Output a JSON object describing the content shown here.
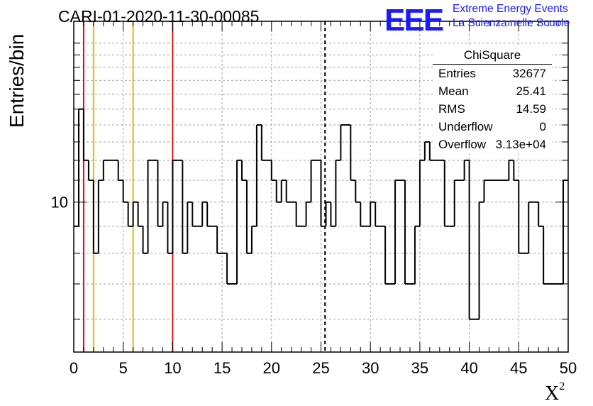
{
  "title": "CARI-01-2020-11-30-00085",
  "logo": {
    "mark": "EEE",
    "line1": "Extreme Energy Events",
    "line2": "La Scienza nelle Scuole",
    "color": "#1a1aff"
  },
  "stats_box": {
    "name": "ChiSquare",
    "rows": [
      {
        "label": "Entries",
        "value": "32677"
      },
      {
        "label": "Mean",
        "value": "25.41"
      },
      {
        "label": "RMS",
        "value": "14.59"
      },
      {
        "label": "Underflow",
        "value": "0"
      },
      {
        "label": "Overflow",
        "value": "3.13e+04"
      }
    ]
  },
  "chart_data": {
    "type": "histogram",
    "title": "CARI-01-2020-11-30-00085",
    "xlabel": "X",
    "xlabel_superscript": "2",
    "ylabel": "Entries/bin",
    "xlim": [
      0,
      50
    ],
    "ylim_log": [
      5.2,
      22
    ],
    "yscale": "log",
    "xticks": [
      0,
      5,
      10,
      15,
      20,
      25,
      30,
      35,
      40,
      45,
      50
    ],
    "ytick_labels": [
      {
        "value": 10,
        "label": "10"
      }
    ],
    "grid": true,
    "bin_width": 0.5,
    "counts": [
      9,
      15,
      12,
      11,
      8,
      11,
      12,
      12,
      12,
      11,
      10,
      9,
      10,
      9,
      8,
      12,
      12,
      9,
      10,
      8,
      12,
      12,
      8,
      10,
      9,
      9,
      10,
      9,
      9,
      8,
      8,
      7,
      7,
      12,
      11,
      8,
      9,
      14,
      12,
      12,
      11,
      10,
      11,
      10,
      10,
      9,
      9,
      10,
      12,
      12,
      9,
      10,
      9,
      12,
      14,
      14,
      11,
      10,
      9,
      9,
      10,
      9,
      9,
      7,
      7,
      11,
      11,
      7,
      7,
      9,
      12,
      13,
      12,
      12,
      12,
      9,
      9,
      11,
      11,
      12,
      6,
      6,
      10,
      11,
      11,
      11,
      11,
      11,
      12,
      11,
      8,
      8,
      10,
      10,
      9,
      7,
      7,
      7,
      7,
      11
    ],
    "vertical_lines": [
      {
        "x": 1,
        "color": "#dd1111",
        "style": "solid"
      },
      {
        "x": 2,
        "color": "#f0b400",
        "style": "solid"
      },
      {
        "x": 6,
        "color": "#f0b400",
        "style": "solid"
      },
      {
        "x": 10,
        "color": "#dd1111",
        "style": "solid"
      },
      {
        "x": 25.41,
        "color": "#000000",
        "style": "dashed"
      }
    ]
  }
}
